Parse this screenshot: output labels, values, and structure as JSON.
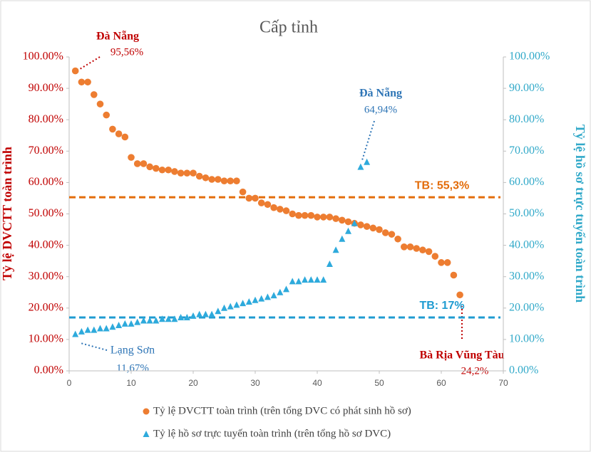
{
  "chart_data": {
    "type": "scatter",
    "title": "Cấp tỉnh",
    "y_label": "Tỷ lệ DVCTT toàn trình",
    "y2_label": "Tỷ lệ hồ sơ trực tuyến toàn trình",
    "xlim": [
      0,
      70
    ],
    "xticks": [
      0,
      10,
      20,
      30,
      40,
      50,
      60,
      70
    ],
    "ylim": [
      0,
      100
    ],
    "yticks": [
      {
        "value": 0,
        "label": "0.00%"
      },
      {
        "value": 10,
        "label": "10.00%"
      },
      {
        "value": 20,
        "label": "20.00%"
      },
      {
        "value": 30,
        "label": "30.00%"
      },
      {
        "value": 40,
        "label": "40.00%"
      },
      {
        "value": 50,
        "label": "50.00%"
      },
      {
        "value": 60,
        "label": "60.00%"
      },
      {
        "value": 70,
        "label": "70.00%"
      },
      {
        "value": 80,
        "label": "80.00%"
      },
      {
        "value": 90,
        "label": "90.00%"
      },
      {
        "value": 100,
        "label": "100.00%"
      }
    ],
    "y2lim": [
      0,
      100
    ],
    "y2ticks": [
      {
        "value": 0,
        "label": "0.00%"
      },
      {
        "value": 10,
        "label": "10.00%"
      },
      {
        "value": 20,
        "label": "20.00%"
      },
      {
        "value": 30,
        "label": "30.00%"
      },
      {
        "value": 40,
        "label": "40.00%"
      },
      {
        "value": 50,
        "label": "50.00%"
      },
      {
        "value": 60,
        "label": "60.00%"
      },
      {
        "value": 70,
        "label": "70.00%"
      },
      {
        "value": 80,
        "label": "80.00%"
      },
      {
        "value": 90,
        "label": "90.00%"
      },
      {
        "value": 100,
        "label": "100.00%"
      }
    ],
    "series": [
      {
        "name": "Tỷ lệ DVCTT toàn trình (trên tổng DVC có phát sinh hồ sơ)",
        "color": "#ed7d31",
        "marker": "circle",
        "x": [
          1,
          2,
          3,
          4,
          5,
          6,
          7,
          8,
          9,
          10,
          11,
          12,
          13,
          14,
          15,
          16,
          17,
          18,
          19,
          20,
          21,
          22,
          23,
          24,
          25,
          26,
          27,
          28,
          29,
          30,
          31,
          32,
          33,
          34,
          35,
          36,
          37,
          38,
          39,
          40,
          41,
          42,
          43,
          44,
          45,
          46,
          47,
          48,
          49,
          50,
          51,
          52,
          53,
          54,
          55,
          56,
          57,
          58,
          59,
          60,
          61,
          62,
          63
        ],
        "values": [
          95.56,
          92,
          92,
          88,
          85,
          81.5,
          77,
          75.5,
          74.5,
          68,
          66,
          66,
          65,
          64.5,
          64,
          64,
          63.5,
          63,
          63,
          63,
          62,
          61.5,
          61,
          61,
          60.5,
          60.5,
          60.5,
          57,
          55,
          55,
          53.5,
          53,
          52,
          51.5,
          51,
          50,
          49.5,
          49.5,
          49.5,
          49,
          49,
          49,
          48.5,
          48,
          47.5,
          47,
          46.5,
          46,
          45.5,
          45,
          44,
          43.5,
          42,
          39.5,
          39.5,
          39,
          38.5,
          38,
          36.5,
          34.5,
          34.5,
          30.5,
          24.2
        ]
      },
      {
        "name": "Tỷ lệ hồ sơ trực tuyến toàn trình (trên tổng hồ sơ DVC)",
        "color": "#2eaadc",
        "marker": "triangle",
        "axis": "y2",
        "x": [
          1,
          2,
          3,
          4,
          5,
          6,
          7,
          8,
          9,
          10,
          11,
          12,
          13,
          14,
          15,
          16,
          17,
          18,
          19,
          20,
          21,
          22,
          23,
          24,
          25,
          26,
          27,
          28,
          29,
          30,
          31,
          32,
          33,
          34,
          35,
          36,
          37,
          38,
          39,
          40,
          41,
          42,
          43,
          44,
          45,
          46,
          47,
          48
        ],
        "values": [
          11.67,
          12.5,
          13,
          13,
          13.5,
          13.5,
          14,
          14.5,
          15,
          15,
          15.5,
          16,
          16,
          16,
          16.5,
          16.5,
          16.5,
          17,
          17,
          17.5,
          18,
          18,
          18,
          19,
          20,
          20.5,
          21,
          21.5,
          22,
          22.5,
          23,
          23.5,
          24,
          25,
          26,
          28.5,
          28.5,
          29,
          29,
          29,
          29,
          34,
          38.5,
          42,
          44.5,
          47,
          64.94,
          66.5
        ]
      }
    ],
    "hlines": [
      {
        "value": 55.3,
        "label": "TB: 55,3%",
        "color": "#e36c0a"
      },
      {
        "value": 17,
        "label": "TB: 17%",
        "color": "#1f9bd1",
        "axis": "y2"
      }
    ],
    "annotations": [
      {
        "text": "Đà Nẵng",
        "value_label": "95,56%"
      },
      {
        "text": "Đà Nẵng",
        "value_label": "64,94%"
      },
      {
        "text": "Lạng Sơn",
        "value_label": "11,67%"
      },
      {
        "text": "Bà Rịa Vũng Tàu",
        "value_label": "24,2%"
      }
    ],
    "legend": "bottom"
  }
}
